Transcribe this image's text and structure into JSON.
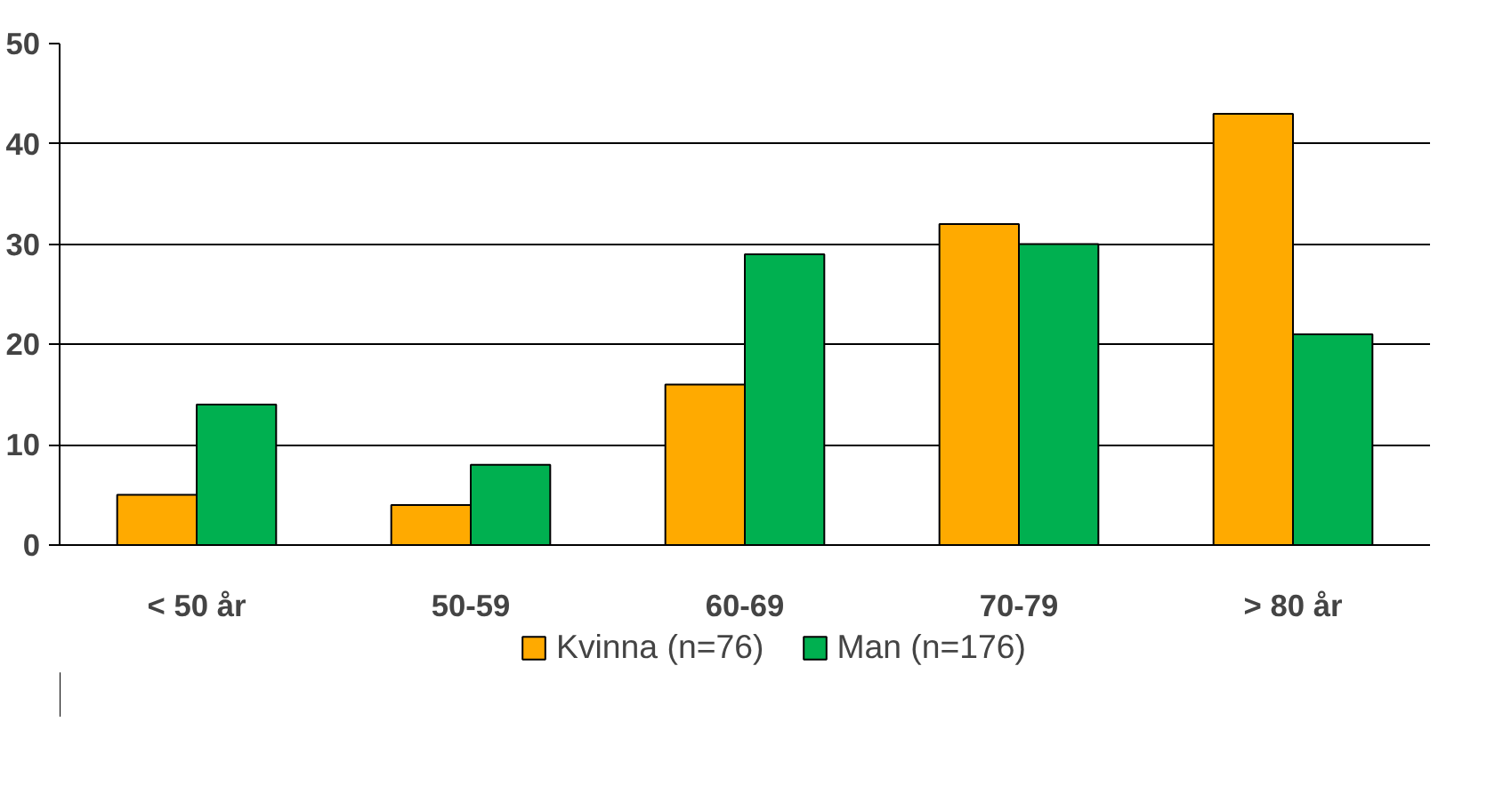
{
  "chart_data": {
    "type": "bar",
    "categories": [
      "< 50 år",
      "50-59",
      "60-69",
      "70-79",
      "> 80 år"
    ],
    "series": [
      {
        "name": "Kvinna (n=76)",
        "color": "#ffaa00",
        "values": [
          5,
          4,
          16,
          32,
          43
        ]
      },
      {
        "name": "Man (n=176)",
        "color": "#00b050",
        "values": [
          14,
          8,
          29,
          30,
          21
        ]
      }
    ],
    "ylim": [
      0,
      50
    ],
    "yticks": [
      0,
      10,
      20,
      30,
      40,
      50
    ],
    "grid": "y",
    "legend": "bottom"
  }
}
